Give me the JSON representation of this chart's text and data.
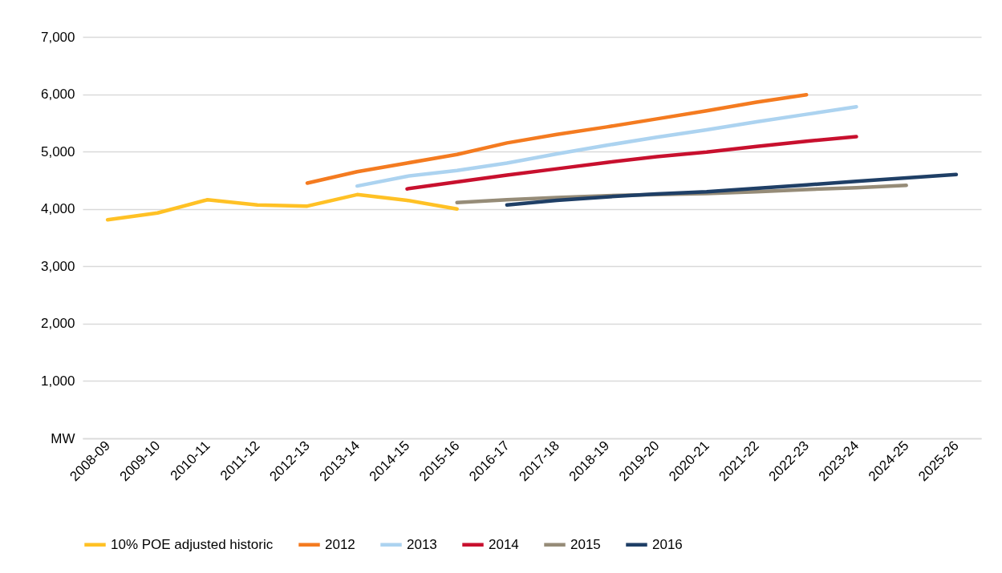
{
  "chart_data": {
    "type": "line",
    "categories": [
      "2008-09",
      "2009-10",
      "2010-11",
      "2011-12",
      "2012-13",
      "2013-14",
      "2014-15",
      "2015-16",
      "2016-17",
      "2017-18",
      "2018-19",
      "2019-20",
      "2020-21",
      "2021-22",
      "2022-23",
      "2023-24",
      "2024-25",
      "2025-26"
    ],
    "series": [
      {
        "name": "10% POE adjusted historic",
        "color": "#ffc125",
        "values": [
          3810,
          3930,
          4160,
          4070,
          4050,
          4250,
          4150,
          4000,
          null,
          null,
          null,
          null,
          null,
          null,
          null,
          null,
          null,
          null
        ]
      },
      {
        "name": "2012",
        "color": "#f47b20",
        "values": [
          null,
          null,
          null,
          null,
          4450,
          4650,
          4800,
          4950,
          5150,
          5300,
          5430,
          5570,
          5710,
          5860,
          5990,
          null,
          null,
          null
        ]
      },
      {
        "name": "2013",
        "color": "#acd3f0",
        "values": [
          null,
          null,
          null,
          null,
          null,
          4400,
          4570,
          4670,
          4800,
          4960,
          5110,
          5250,
          5380,
          5520,
          5650,
          5780,
          null,
          null
        ]
      },
      {
        "name": "2014",
        "color": "#c8102e",
        "values": [
          null,
          null,
          null,
          null,
          null,
          null,
          4350,
          4470,
          4590,
          4700,
          4810,
          4910,
          4990,
          5090,
          5180,
          5260,
          null,
          null
        ]
      },
      {
        "name": "2015",
        "color": "#968c78",
        "values": [
          null,
          null,
          null,
          null,
          null,
          null,
          null,
          4110,
          4160,
          4200,
          4230,
          4250,
          4270,
          4300,
          4340,
          4370,
          4410,
          null
        ]
      },
      {
        "name": "2016",
        "color": "#1f3f66",
        "values": [
          null,
          null,
          null,
          null,
          null,
          null,
          null,
          null,
          4070,
          4150,
          4210,
          4260,
          4300,
          4360,
          4420,
          4480,
          4540,
          4600
        ]
      }
    ],
    "ylim": [
      0,
      7000
    ],
    "yticks": [
      {
        "value": 0,
        "label": "MW"
      },
      {
        "value": 1000,
        "label": "1,000"
      },
      {
        "value": 2000,
        "label": "2,000"
      },
      {
        "value": 3000,
        "label": "3,000"
      },
      {
        "value": 4000,
        "label": "4,000"
      },
      {
        "value": 5000,
        "label": "5,000"
      },
      {
        "value": 6000,
        "label": "6,000"
      },
      {
        "value": 7000,
        "label": "7,000"
      }
    ],
    "grid": "y",
    "legend": "bottom",
    "marker": "none",
    "line_style": "solid"
  }
}
